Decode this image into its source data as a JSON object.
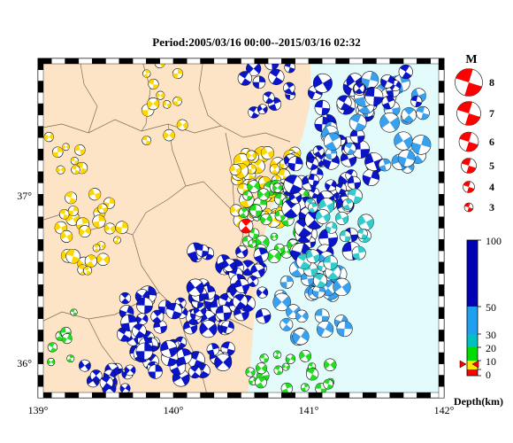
{
  "title": "Period:2005/03/16 00:00--2015/03/16 02:32",
  "map": {
    "lon_ticks": [
      "139°",
      "140°",
      "141°",
      "142°"
    ],
    "lat_ticks": [
      "37°",
      "36°"
    ],
    "lon_range": [
      139,
      142
    ],
    "lat_range": [
      35.9,
      37.7
    ],
    "colors": {
      "land": "#fde4c6",
      "sea": "#e3fbfb",
      "prefecture_border": "#7a6a55"
    }
  },
  "magnitude_legend": {
    "title": "M",
    "items": [
      {
        "label": "8",
        "mag": 8
      },
      {
        "label": "7",
        "mag": 7
      },
      {
        "label": "6",
        "mag": 6
      },
      {
        "label": "5",
        "mag": 5
      },
      {
        "label": "4",
        "mag": 4
      },
      {
        "label": "3",
        "mag": 3
      }
    ],
    "color": "#ff0000"
  },
  "depth_scale": {
    "label": "Depth(km)",
    "ticks": [
      "100",
      "50",
      "30",
      "20",
      "10",
      "0"
    ],
    "colors": {
      "shallow": "#ff0000",
      "d10": "#ffe600",
      "d20": "#00dd00",
      "d30": "#00c0c0",
      "d50": "#1ea0f0",
      "deep": "#0000b4"
    }
  },
  "events": {
    "colors": {
      "yellow": "#ffd700",
      "green": "#22dd22",
      "cyan": "#33cccc",
      "lightblue": "#3aa0ee",
      "blue": "#0a14c8",
      "red": "#ff0000"
    }
  }
}
